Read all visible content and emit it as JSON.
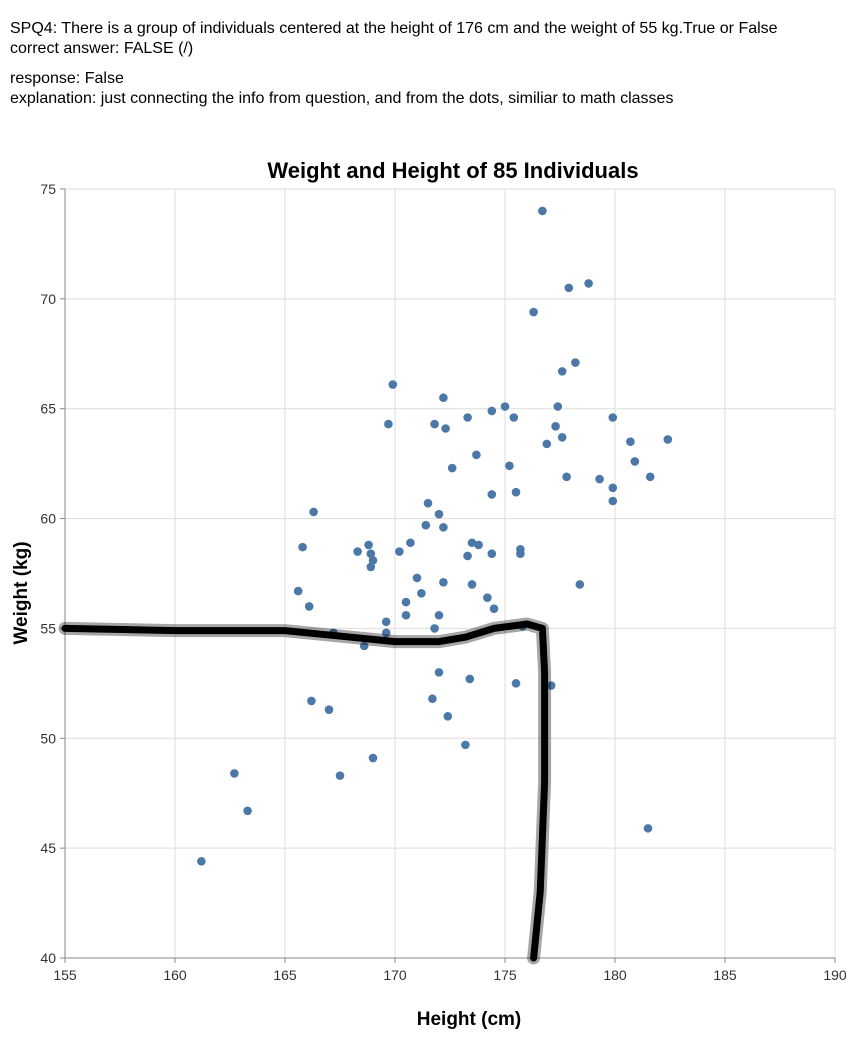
{
  "prompt": {
    "question_line": "SPQ4: There is a group of individuals centered at the height of 176 cm and the weight of 55 kg.True or False",
    "correct_line": "correct answer: FALSE (/)",
    "response_line": "response: False",
    "explanation_line": "explanation: just connecting the info from question, and from the dots, similiar to math classes"
  },
  "chart_data": {
    "type": "scatter",
    "title": "Weight and Height of 85 Individuals",
    "xlabel": "Height (cm)",
    "ylabel": "Weight (kg)",
    "xlim": [
      155,
      190
    ],
    "ylim": [
      40,
      75
    ],
    "x_ticks": [
      155,
      160,
      165,
      170,
      175,
      180,
      185,
      190
    ],
    "y_ticks": [
      40,
      45,
      50,
      55,
      60,
      65,
      70,
      75
    ],
    "grid": true,
    "point_color": "#4c78a8",
    "annotation_color": "#000000",
    "points": [
      [
        176.7,
        74.0
      ],
      [
        178.8,
        70.7
      ],
      [
        177.9,
        70.5
      ],
      [
        176.3,
        69.4
      ],
      [
        178.2,
        67.1
      ],
      [
        177.6,
        66.7
      ],
      [
        169.9,
        66.1
      ],
      [
        172.2,
        65.5
      ],
      [
        177.4,
        65.1
      ],
      [
        175.0,
        65.1
      ],
      [
        174.4,
        64.9
      ],
      [
        175.4,
        64.6
      ],
      [
        179.9,
        64.6
      ],
      [
        173.3,
        64.6
      ],
      [
        171.8,
        64.3
      ],
      [
        169.7,
        64.3
      ],
      [
        172.3,
        64.1
      ],
      [
        177.3,
        64.2
      ],
      [
        177.6,
        63.7
      ],
      [
        180.7,
        63.5
      ],
      [
        182.4,
        63.6
      ],
      [
        176.9,
        63.4
      ],
      [
        173.7,
        62.9
      ],
      [
        180.9,
        62.6
      ],
      [
        175.2,
        62.4
      ],
      [
        172.6,
        62.3
      ],
      [
        177.8,
        61.9
      ],
      [
        179.3,
        61.8
      ],
      [
        181.6,
        61.9
      ],
      [
        179.9,
        61.4
      ],
      [
        175.5,
        61.2
      ],
      [
        174.4,
        61.1
      ],
      [
        179.9,
        60.8
      ],
      [
        171.5,
        60.7
      ],
      [
        166.3,
        60.3
      ],
      [
        172.0,
        60.2
      ],
      [
        171.4,
        59.7
      ],
      [
        172.2,
        59.6
      ],
      [
        173.5,
        58.9
      ],
      [
        173.8,
        58.8
      ],
      [
        170.7,
        58.9
      ],
      [
        168.8,
        58.8
      ],
      [
        165.8,
        58.7
      ],
      [
        168.3,
        58.5
      ],
      [
        170.2,
        58.5
      ],
      [
        168.9,
        58.4
      ],
      [
        174.4,
        58.4
      ],
      [
        175.7,
        58.6
      ],
      [
        175.7,
        58.4
      ],
      [
        173.3,
        58.3
      ],
      [
        169.0,
        58.1
      ],
      [
        168.9,
        57.8
      ],
      [
        171.0,
        57.3
      ],
      [
        172.2,
        57.1
      ],
      [
        173.5,
        57.0
      ],
      [
        178.4,
        57.0
      ],
      [
        165.6,
        56.7
      ],
      [
        171.2,
        56.6
      ],
      [
        174.2,
        56.4
      ],
      [
        170.5,
        56.2
      ],
      [
        166.1,
        56.0
      ],
      [
        174.5,
        55.9
      ],
      [
        172.0,
        55.6
      ],
      [
        170.5,
        55.6
      ],
      [
        169.6,
        55.3
      ],
      [
        171.8,
        55.0
      ],
      [
        169.6,
        54.8
      ],
      [
        167.2,
        54.8
      ],
      [
        168.6,
        54.2
      ],
      [
        172.0,
        53.0
      ],
      [
        173.4,
        52.7
      ],
      [
        175.5,
        52.5
      ],
      [
        177.1,
        52.4
      ],
      [
        171.7,
        51.8
      ],
      [
        166.2,
        51.7
      ],
      [
        167.0,
        51.3
      ],
      [
        172.4,
        51.0
      ],
      [
        173.2,
        49.7
      ],
      [
        169.0,
        49.1
      ],
      [
        162.7,
        48.4
      ],
      [
        167.5,
        48.3
      ],
      [
        163.3,
        46.7
      ],
      [
        181.5,
        45.9
      ],
      [
        161.2,
        44.4
      ],
      [
        175.8,
        55.1
      ]
    ],
    "annotation_path": [
      [
        155.0,
        55.0
      ],
      [
        160.0,
        54.9
      ],
      [
        165.0,
        54.9
      ],
      [
        168.0,
        54.6
      ],
      [
        170.0,
        54.4
      ],
      [
        172.0,
        54.4
      ],
      [
        173.2,
        54.6
      ],
      [
        174.5,
        55.0
      ],
      [
        176.0,
        55.2
      ],
      [
        176.7,
        55.0
      ],
      [
        176.8,
        53.0
      ],
      [
        176.8,
        48.0
      ],
      [
        176.6,
        43.0
      ],
      [
        176.3,
        40.0
      ]
    ]
  }
}
